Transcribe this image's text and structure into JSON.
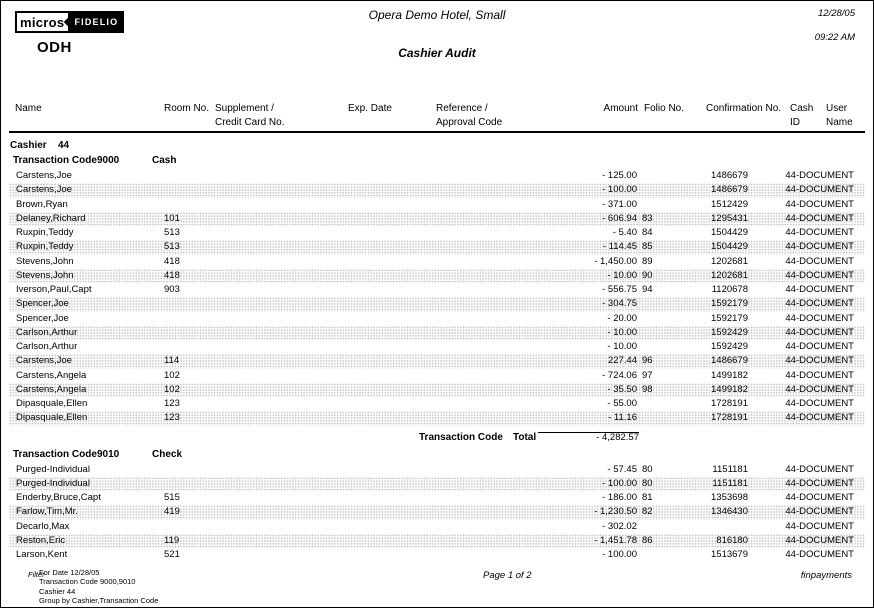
{
  "page": {
    "logo_left": "micros",
    "logo_right": "FIDELIO",
    "property_code": "ODH",
    "hotel_name": "Opera Demo Hotel, Small",
    "report_title": "Cashier Audit",
    "date": "12/28/05",
    "time": "09:22 AM"
  },
  "columns": {
    "name": "Name",
    "room": "Room No.",
    "supplement_line1": "Supplement /",
    "supplement_line2": "Credit Card No.",
    "exp_date": "Exp. Date",
    "reference_line1": "Reference /",
    "reference_line2": "Approval Code",
    "amount": "Amount",
    "folio": "Folio No.",
    "confirmation": "Confirmation No.",
    "cash_line1": "Cash",
    "cash_line2": "ID",
    "user_line1": "User",
    "user_line2": "Name"
  },
  "group": {
    "label": "Cashier",
    "value": "44"
  },
  "sections": [
    {
      "header": {
        "label": "Transaction Code",
        "code": "9000",
        "description": "Cash"
      },
      "rows": [
        {
          "name": "Carstens,Joe",
          "room": "",
          "amount": "- 125.00",
          "folio": "",
          "confirmation": "1486679",
          "user": "44-DOCUMENT"
        },
        {
          "name": "Carstens,Joe",
          "room": "",
          "amount": "- 100.00",
          "folio": "",
          "confirmation": "1486679",
          "user": "44-DOCUMENT"
        },
        {
          "name": "Brown,Ryan",
          "room": "",
          "amount": "- 371.00",
          "folio": "",
          "confirmation": "1512429",
          "user": "44-DOCUMENT"
        },
        {
          "name": "Delaney,Richard",
          "room": "101",
          "amount": "- 606.94",
          "folio": "83",
          "confirmation": "1295431",
          "user": "44-DOCUMENT"
        },
        {
          "name": "Ruxpin,Teddy",
          "room": "513",
          "amount": "- 5.40",
          "folio": "84",
          "confirmation": "1504429",
          "user": "44-DOCUMENT"
        },
        {
          "name": "Ruxpin,Teddy",
          "room": "513",
          "amount": "- 114.45",
          "folio": "85",
          "confirmation": "1504429",
          "user": "44-DOCUMENT"
        },
        {
          "name": "Stevens,John",
          "room": "418",
          "amount": "- 1,450.00",
          "folio": "89",
          "confirmation": "1202681",
          "user": "44-DOCUMENT"
        },
        {
          "name": "Stevens,John",
          "room": "418",
          "amount": "- 10.00",
          "folio": "90",
          "confirmation": "1202681",
          "user": "44-DOCUMENT"
        },
        {
          "name": "Iverson,Paul,Capt",
          "room": "903",
          "amount": "- 556.75",
          "folio": "94",
          "confirmation": "1120678",
          "user": "44-DOCUMENT"
        },
        {
          "name": "Spencer,Joe",
          "room": "",
          "amount": "- 304.75",
          "folio": "",
          "confirmation": "1592179",
          "user": "44-DOCUMENT"
        },
        {
          "name": "Spencer,Joe",
          "room": "",
          "amount": "- 20.00",
          "folio": "",
          "confirmation": "1592179",
          "user": "44-DOCUMENT"
        },
        {
          "name": "Carlson,Arthur",
          "room": "",
          "amount": "- 10.00",
          "folio": "",
          "confirmation": "1592429",
          "user": "44-DOCUMENT"
        },
        {
          "name": "Carlson,Arthur",
          "room": "",
          "amount": "- 10.00",
          "folio": "",
          "confirmation": "1592429",
          "user": "44-DOCUMENT"
        },
        {
          "name": "Carstens,Joe",
          "room": "114",
          "amount": "227.44",
          "folio": "96",
          "confirmation": "1486679",
          "user": "44-DOCUMENT"
        },
        {
          "name": "Carstens,Angela",
          "room": "102",
          "amount": "- 724.06",
          "folio": "97",
          "confirmation": "1499182",
          "user": "44-DOCUMENT"
        },
        {
          "name": "Carstens,Angela",
          "room": "102",
          "amount": "- 35.50",
          "folio": "98",
          "confirmation": "1499182",
          "user": "44-DOCUMENT"
        },
        {
          "name": "Dipasquale,Ellen",
          "room": "123",
          "amount": "- 55.00",
          "folio": "",
          "confirmation": "1728191",
          "user": "44-DOCUMENT"
        },
        {
          "name": "Dipasquale,Ellen",
          "room": "123",
          "amount": "- 11.16",
          "folio": "",
          "confirmation": "1728191",
          "user": "44-DOCUMENT"
        }
      ],
      "total": {
        "label": "Transaction Code",
        "total_label": "Total",
        "amount": "- 4,282.57"
      }
    },
    {
      "header": {
        "label": "Transaction Code",
        "code": "9010",
        "description": "Check"
      },
      "rows": [
        {
          "name": "Purged-Individual",
          "room": "",
          "amount": "- 57.45",
          "folio": "80",
          "confirmation": "1151181",
          "user": "44-DOCUMENT"
        },
        {
          "name": "Purged-Individual",
          "room": "",
          "amount": "- 100.00",
          "folio": "80",
          "confirmation": "1151181",
          "user": "44-DOCUMENT"
        },
        {
          "name": "Enderby,Bruce,Capt",
          "room": "515",
          "amount": "- 186.00",
          "folio": "81",
          "confirmation": "1353698",
          "user": "44-DOCUMENT"
        },
        {
          "name": "Farlow,Tim,Mr.",
          "room": "419",
          "amount": "- 1,230.50",
          "folio": "82",
          "confirmation": "1346430",
          "user": "44-DOCUMENT"
        },
        {
          "name": "Decarlo,Max",
          "room": "",
          "amount": "- 302.02",
          "folio": "",
          "confirmation": "",
          "user": "44-DOCUMENT"
        },
        {
          "name": "Reston,Eric",
          "room": "119",
          "amount": "- 1,451.78",
          "folio": "86",
          "confirmation": "816180",
          "user": "44-DOCUMENT"
        },
        {
          "name": "Larson,Kent",
          "room": "521",
          "amount": "- 100.00",
          "folio": "",
          "confirmation": "1513679",
          "user": "44-DOCUMENT"
        }
      ]
    }
  ],
  "footer": {
    "filter_label": "Filter",
    "filter_lines": [
      "For Date 12/28/05",
      "Transaction Code 9000,9010",
      "Cashier 44",
      "Group by Cashier,Transaction Code"
    ],
    "page_info": "Page 1  of 2",
    "report_code": "finpayments"
  }
}
